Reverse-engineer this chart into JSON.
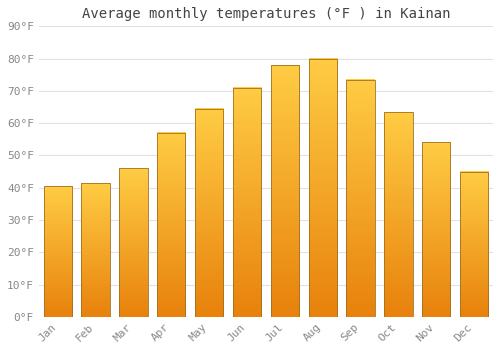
{
  "title": "Average monthly temperatures (°F ) in Kainan",
  "months": [
    "Jan",
    "Feb",
    "Mar",
    "Apr",
    "May",
    "Jun",
    "Jul",
    "Aug",
    "Sep",
    "Oct",
    "Nov",
    "Dec"
  ],
  "values": [
    40.5,
    41.5,
    46.0,
    57.0,
    64.5,
    71.0,
    78.0,
    80.0,
    73.5,
    63.5,
    54.0,
    45.0
  ],
  "bar_color_top": "#FFCC44",
  "bar_color_bottom": "#E8820C",
  "bar_edge_color": "#A07020",
  "ylim": [
    0,
    90
  ],
  "yticks": [
    0,
    10,
    20,
    30,
    40,
    50,
    60,
    70,
    80,
    90
  ],
  "ytick_labels": [
    "0°F",
    "10°F",
    "20°F",
    "30°F",
    "40°F",
    "50°F",
    "60°F",
    "70°F",
    "80°F",
    "90°F"
  ],
  "background_color": "#FFFFFF",
  "grid_color": "#E0E0E8",
  "title_fontsize": 10,
  "tick_fontsize": 8,
  "font_family": "monospace",
  "tick_color": "#888888",
  "title_color": "#444444"
}
